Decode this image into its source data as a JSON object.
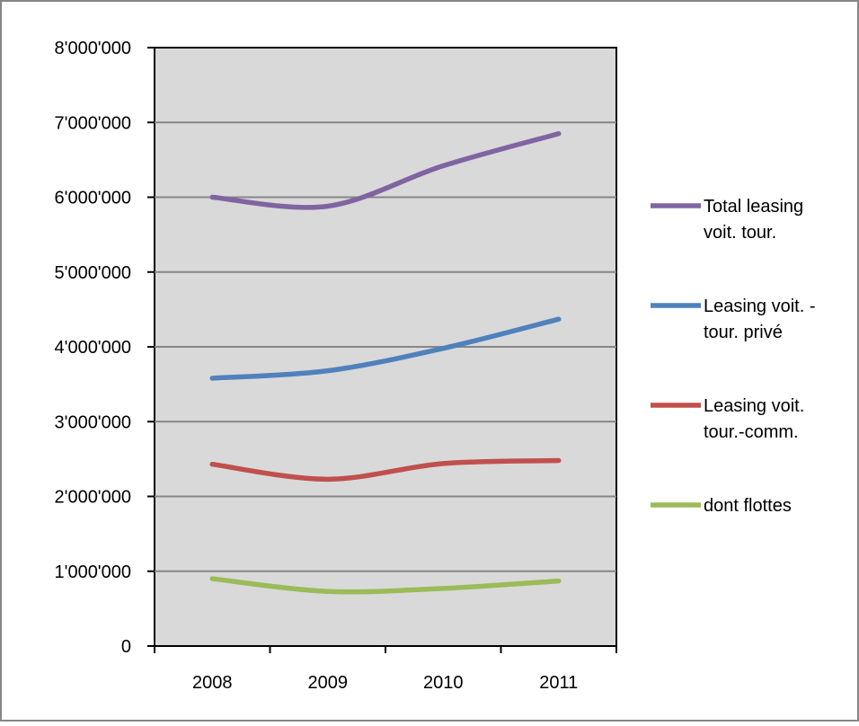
{
  "chart_data": {
    "type": "line",
    "categories": [
      "2008",
      "2009",
      "2010",
      "2011"
    ],
    "series": [
      {
        "name": "Total leasing voit. tour.",
        "legend_lines": [
          "Total leasing",
          "voit. tour."
        ],
        "color": "#8064a2",
        "values": [
          6000000,
          5880000,
          6420000,
          6850000
        ]
      },
      {
        "name": "Leasing voit. - tour. privé",
        "legend_lines": [
          "Leasing voit. -",
          "tour. privé"
        ],
        "color": "#4f81bd",
        "values": [
          3580000,
          3680000,
          3980000,
          4370000
        ]
      },
      {
        "name": "Leasing voit. tour.-comm.",
        "legend_lines": [
          "Leasing voit.",
          "tour.-comm."
        ],
        "color": "#c0504d",
        "values": [
          2430000,
          2230000,
          2440000,
          2480000
        ]
      },
      {
        "name": "dont flottes",
        "legend_lines": [
          "dont flottes"
        ],
        "color": "#9bbb59",
        "values": [
          900000,
          730000,
          770000,
          870000
        ]
      }
    ],
    "y_ticks": [
      "0",
      "1'000'000",
      "2'000'000",
      "3'000'000",
      "4'000'000",
      "5'000'000",
      "6'000'000",
      "7'000'000",
      "8'000'000"
    ],
    "ylim": [
      0,
      8000000
    ],
    "grid": true,
    "legend_position": "right",
    "plot_background": "#d9d9d9",
    "title": "",
    "xlabel": "",
    "ylabel": ""
  }
}
